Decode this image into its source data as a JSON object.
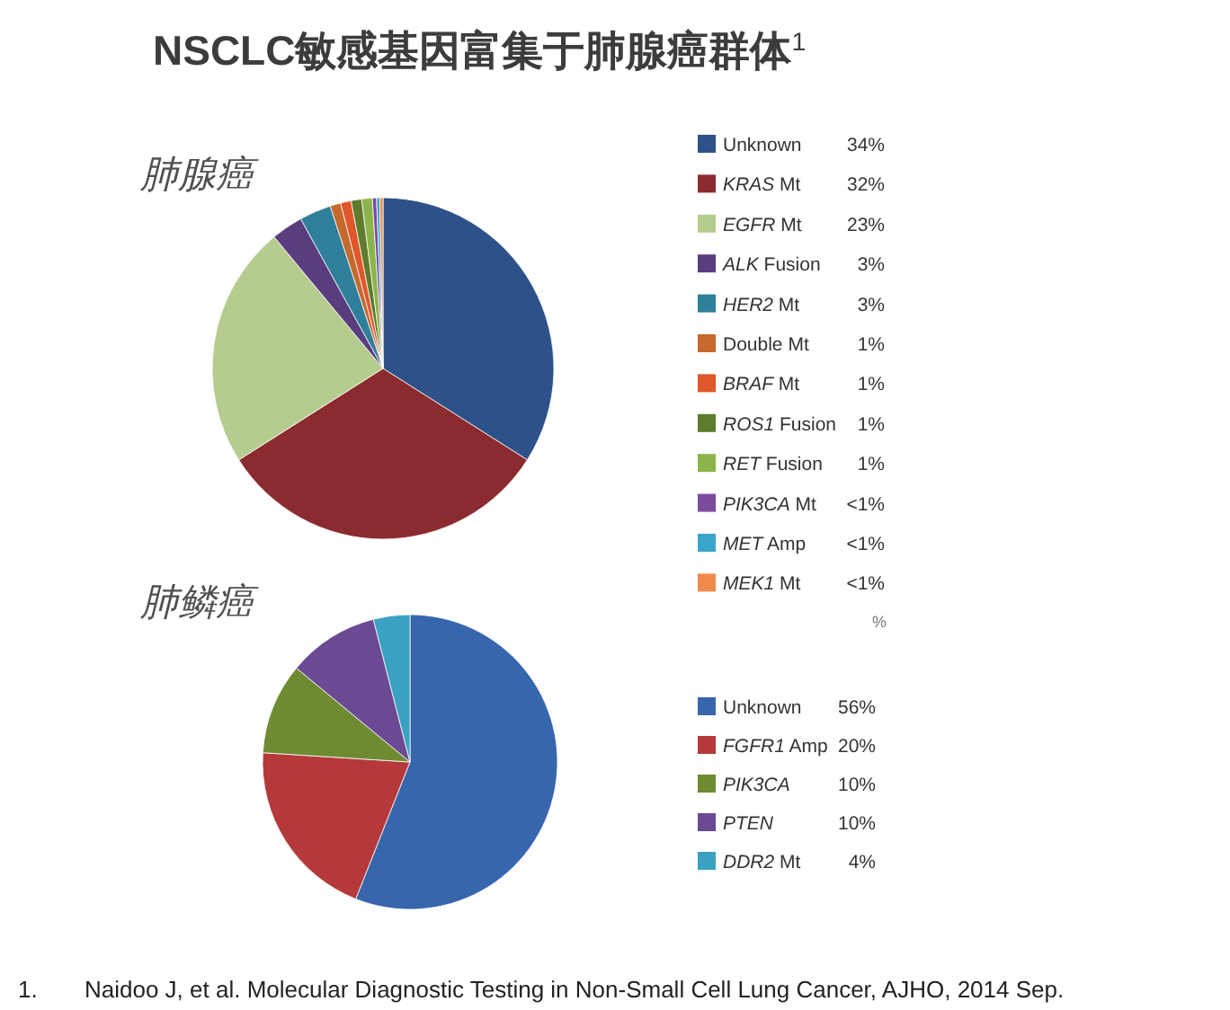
{
  "chart_data": [
    {
      "type": "pie",
      "title": "NSCLC敏感基因富集于肺腺癌群体$^{1}$",
      "subtitle": "肺腺癌",
      "categories": [
        "Unknown",
        "*KRAS* Mt",
        "*EGFR* Mt",
        "*ALK* Fusion",
        "*HER2* Mt",
        "Double Mt",
        "*BRAF* Mt",
        "*ROS1* Fusion",
        "*RET* Fusion",
        "*PIK3CA* Mt",
        "*MET* Amp",
        "*MEK1* Mt"
      ],
      "values": [
        34,
        32,
        23,
        3,
        3,
        1,
        1,
        1,
        1,
        0.4,
        0.3,
        0.3
      ],
      "value_labels": [
        "34%",
        "32%",
        "23%",
        "3%",
        "3%",
        "1%",
        "1%",
        "1%",
        "1%",
        "<1%",
        "<1%",
        "<1%"
      ],
      "colors": [
        "#2d5189",
        "#8b2b2f",
        "#b5cc8e",
        "#5a3d7f",
        "#2f7f9a",
        "#c5692d",
        "#e0572a",
        "#5f7c2e",
        "#8db44a",
        "#7b4c9e",
        "#3aa5cc",
        "#f08a4b"
      ],
      "legend": "right",
      "annotations": [
        "%"
      ]
    },
    {
      "type": "pie",
      "title": "肺鳞癌",
      "categories": [
        "Unknown",
        "*FGFR1* Amp",
        "*PIK3CA*",
        "*PTEN*",
        "*DDR2* Mt"
      ],
      "values": [
        56,
        20,
        10,
        10,
        4
      ],
      "value_labels": [
        "56%",
        "20%",
        "10%",
        "10%",
        "4%"
      ],
      "colors": [
        "#3766ad",
        "#b5393b",
        "#6e8b32",
        "#6b4a93",
        "#3aa1c2"
      ],
      "legend": "right",
      "annotations": [
        "1.",
        "Naidoo J, et al. Molecular Diagnostic Testing in Non-Small Cell Lung Cancer, AJHO, 2014 Sep."
      ]
    }
  ]
}
